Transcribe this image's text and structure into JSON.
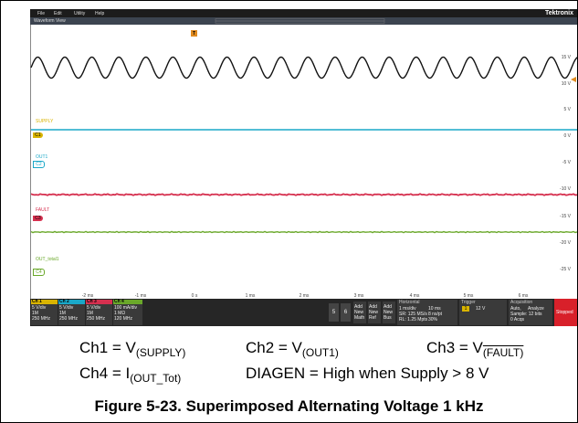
{
  "menu": [
    "File",
    "Edit",
    "Utility",
    "Help"
  ],
  "brand": "Tektronix",
  "view_title": "Waveform View",
  "trigger_marker": "T",
  "x_axis_labels": [
    "-2 ms",
    "-1 ms",
    "0 s",
    "1 ms",
    "2 ms",
    "3 ms",
    "4 ms",
    "5 ms",
    "6 ms"
  ],
  "y_axis_labels": [
    "15 V",
    "10 V",
    "5 V",
    "0 V",
    "-5 V",
    "-10 V",
    "-15 V",
    "-20 V",
    "-25 V"
  ],
  "trace_labels": [
    "SUPPLY",
    "OUT1",
    "FAULT",
    "OUT_total1"
  ],
  "channel_markers": [
    "C1",
    "C2",
    "C3",
    "C4"
  ],
  "channels": [
    {
      "name": "Ch 1",
      "lines": [
        "5 V/div",
        "1M",
        "250 MHz"
      ]
    },
    {
      "name": "Ch 2",
      "lines": [
        "5 V/div",
        "1M",
        "250 MHz"
      ]
    },
    {
      "name": "Ch 3",
      "lines": [
        "5 V/div",
        "1M",
        "250 MHz"
      ]
    },
    {
      "name": "Ch 4",
      "lines": [
        "100 mA/div",
        "1 MΩ",
        "120 MHz"
      ]
    }
  ],
  "buttons": [
    "5",
    "6"
  ],
  "add_buttons": [
    [
      "Add",
      "New",
      "Math"
    ],
    [
      "Add",
      "New",
      "Ref"
    ],
    [
      "Add",
      "New",
      "Bus"
    ]
  ],
  "horizontal": {
    "title": "Horizontal",
    "lines": [
      "1 ms/div",
      "10 ms",
      "SR: 125 MS/s",
      "8 ns/pt",
      "RL: 1.25 Mpts",
      "30%"
    ]
  },
  "trigger": {
    "title": "Trigger",
    "source": "1",
    "level": "12 V"
  },
  "acquisition": {
    "title": "Acquisition",
    "lines": [
      "Auto,",
      "Analyze",
      "Sample: 12 bits",
      "0 Acqs"
    ]
  },
  "status": "Stopped",
  "captions": [
    [
      {
        "lead": "Ch1 = V",
        "sub": "(SUPPLY)"
      },
      {
        "lead": "Ch2 = V",
        "sub": "(OUT1)"
      },
      {
        "lead": "Ch3 = V",
        "sub": "(FAULT)"
      }
    ],
    [
      {
        "lead": "Ch4 = I",
        "sub": "(OUT_Tot)"
      },
      {
        "lead": "DIAGEN = High when Supply > 8 V"
      }
    ]
  ],
  "figure_caption": "Figure 5-23. Superimposed Alternating Voltage 1 kHz"
}
